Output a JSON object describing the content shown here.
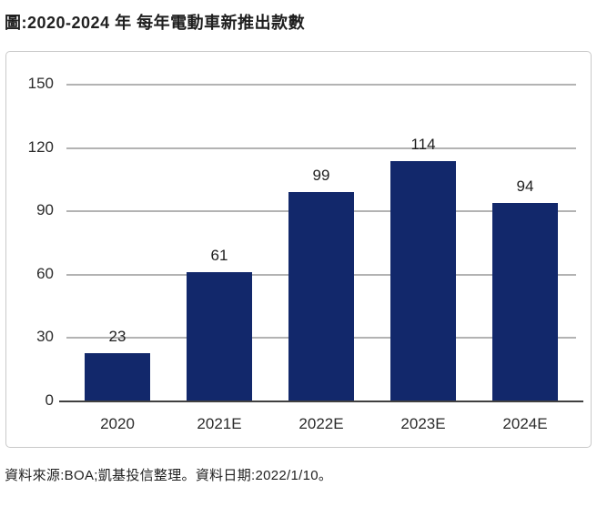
{
  "header": {
    "title": "圖:2020-2024 年 每年電動車新推出款數"
  },
  "footer": {
    "source_note": "資料來源:BOA;凱基投信整理。資料日期:2022/1/10。"
  },
  "colors": {
    "bar": "#12286b",
    "gridline": "#b3b3b3",
    "baseline": "#404040",
    "box_border": "#c9c9c9",
    "text": "#1f1f1f"
  },
  "chart_data": {
    "type": "bar",
    "title": "圖:2020-2024 年 每年電動車新推出款數",
    "categories": [
      "2020",
      "2021E",
      "2022E",
      "2023E",
      "2024E"
    ],
    "values": [
      23,
      61,
      99,
      114,
      94
    ],
    "yticks": [
      0,
      30,
      60,
      90,
      120,
      150
    ],
    "ylim": [
      0,
      150
    ],
    "xlabel": "",
    "ylabel": "",
    "grid": true,
    "legend": "none",
    "data_labels": true,
    "source_note": "資料來源:BOA;凱基投信整理。資料日期:2022/1/10。"
  }
}
